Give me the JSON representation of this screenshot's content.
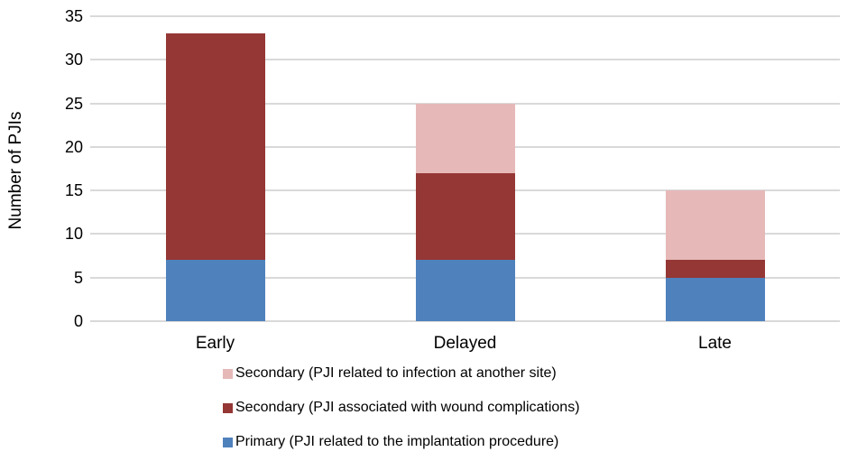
{
  "chart_data": {
    "type": "bar",
    "subtype": "stacked",
    "categories": [
      "Early",
      "Delayed",
      "Late"
    ],
    "series": [
      {
        "name": "Primary (PJI related to the implantation procedure)",
        "color": "#4F81BD",
        "values": [
          7,
          7,
          5
        ]
      },
      {
        "name": "Secondary (PJI associated with wound complications)",
        "color": "#953735",
        "values": [
          26,
          10,
          2
        ]
      },
      {
        "name": "Secondary (PJI related to infection at another site)",
        "color": "#E6B9B8",
        "values": [
          0,
          8,
          8
        ]
      }
    ],
    "stack_totals": [
      33,
      25,
      15
    ],
    "title": "",
    "xlabel": "",
    "ylabel": "Number of PJIs",
    "yticks": [
      0,
      5,
      10,
      15,
      20,
      25,
      30,
      35
    ],
    "ylim": [
      0,
      35
    ],
    "grid": true,
    "gridline_color": "#D9D9D9",
    "legend_position": "bottom",
    "legend_order_top_to_bottom": [
      2,
      1,
      0
    ]
  }
}
